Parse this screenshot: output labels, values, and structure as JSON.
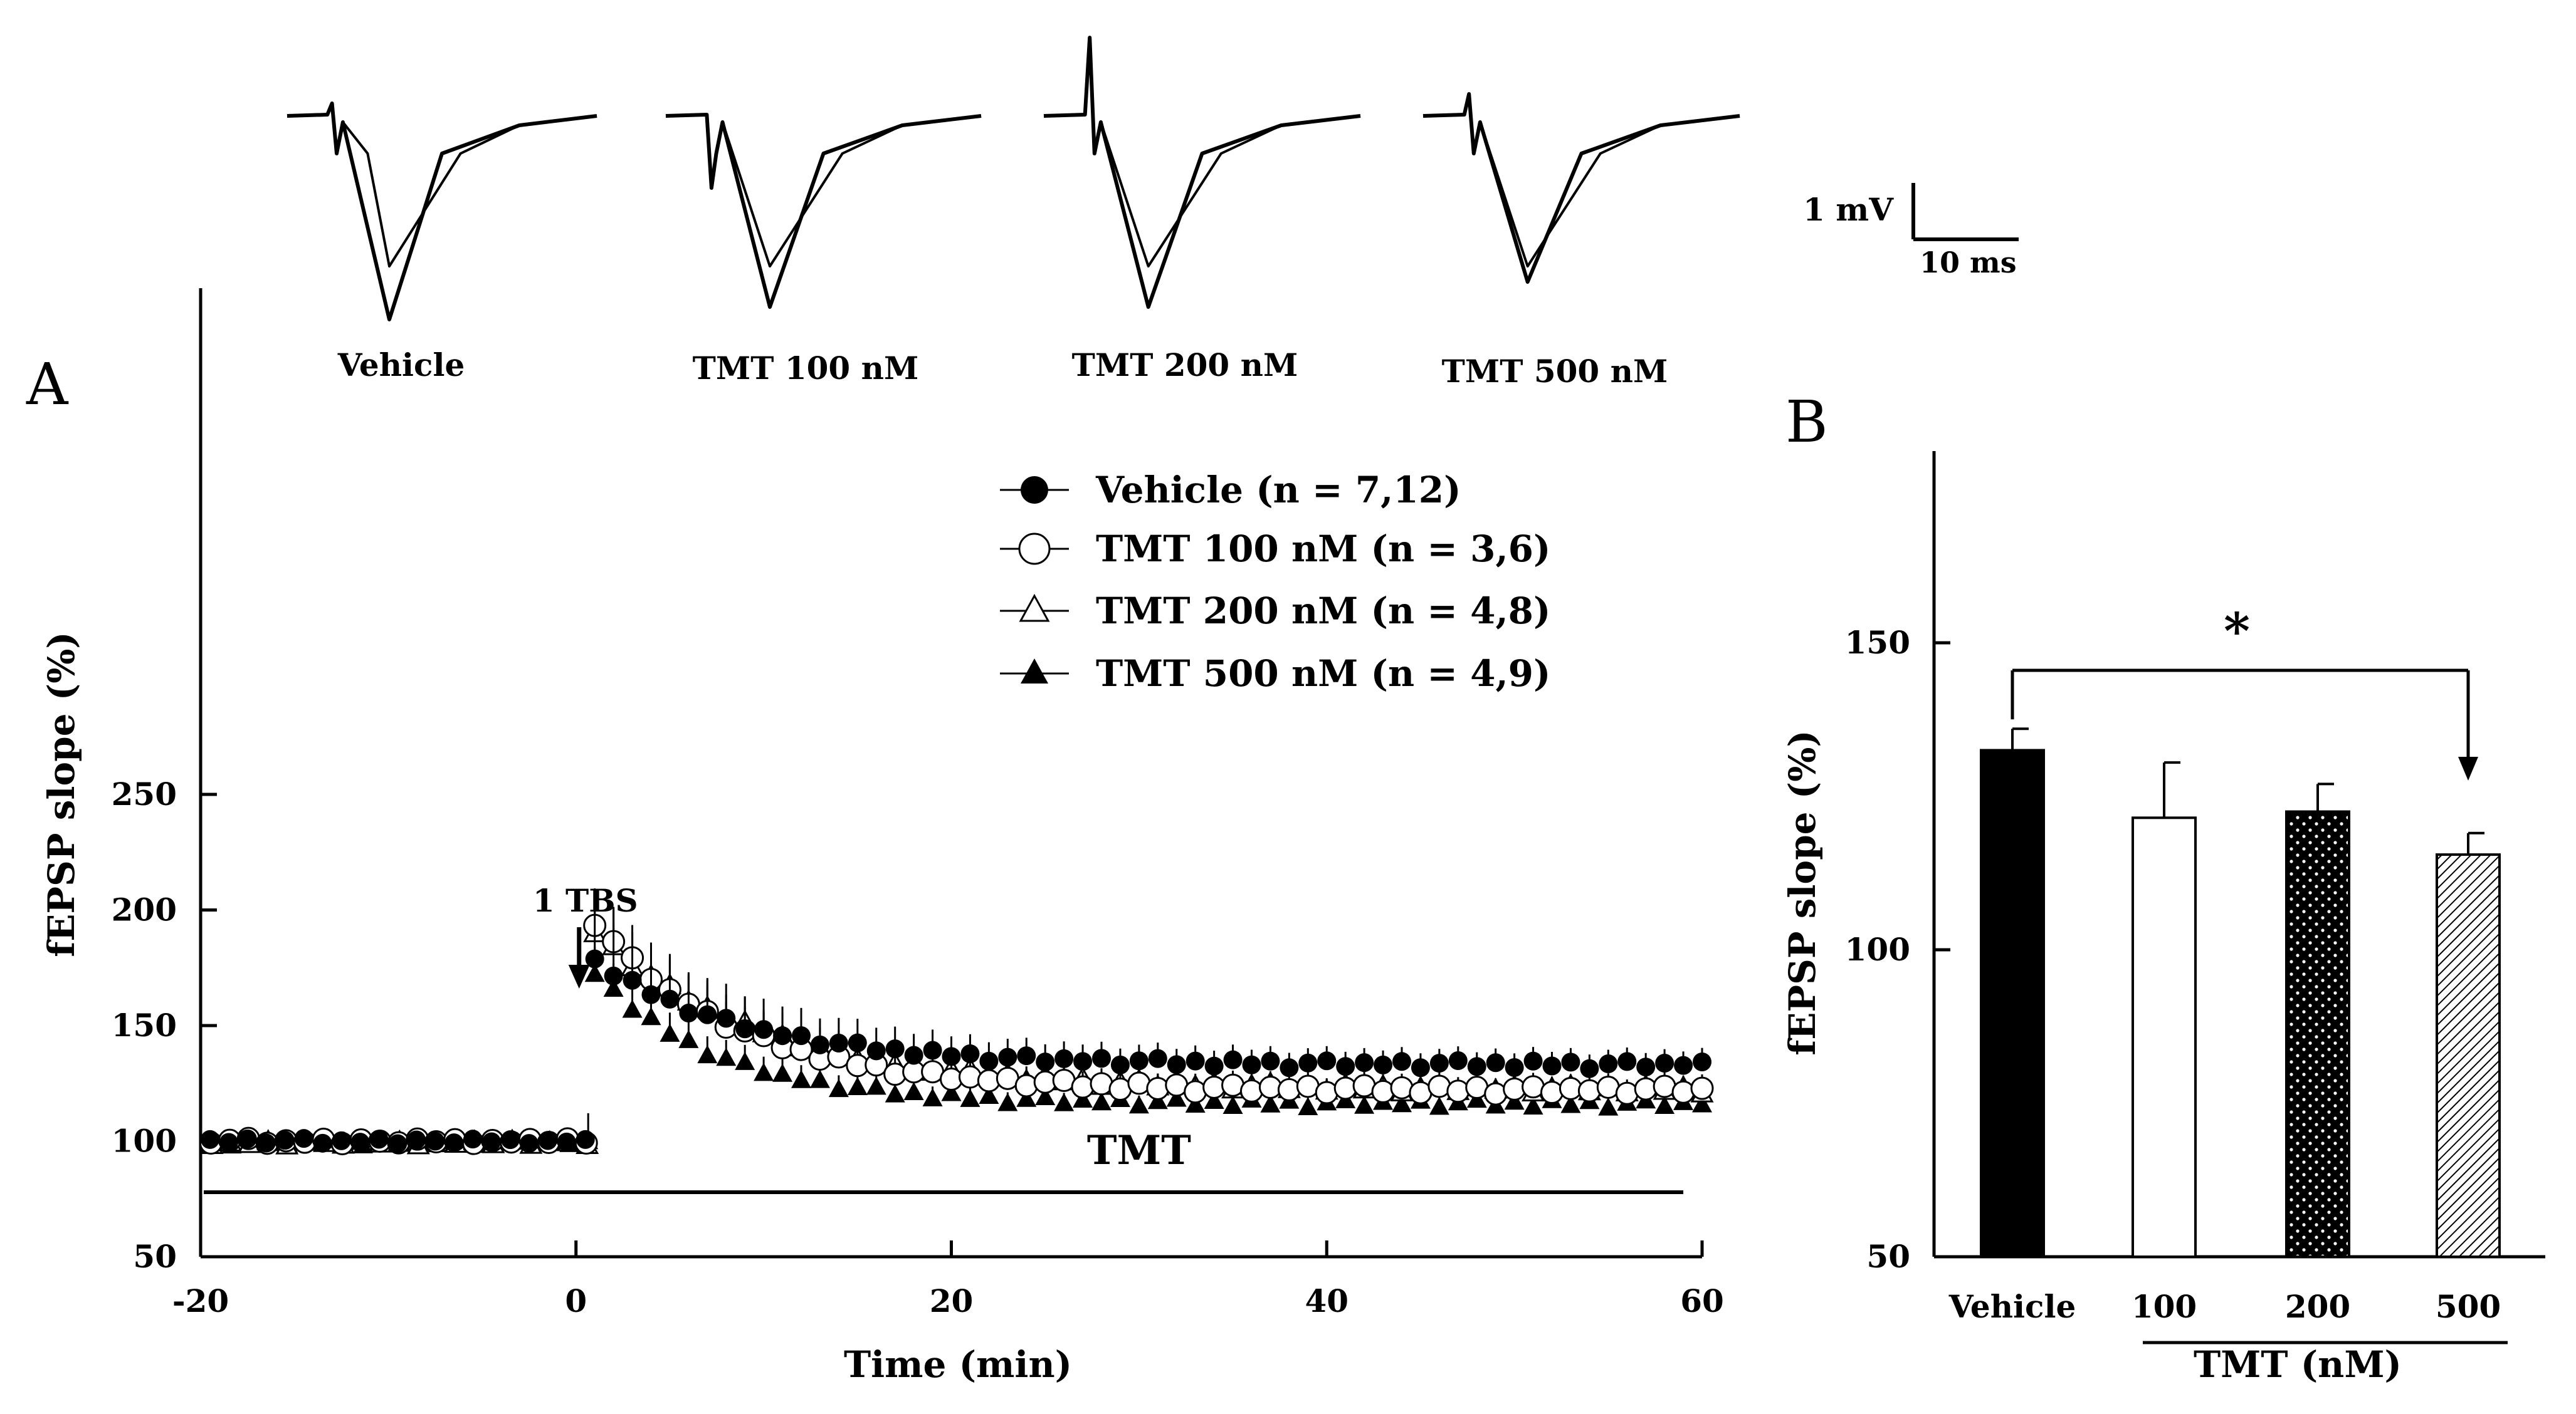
{
  "panel_labels": {
    "a": "A",
    "b": "B"
  },
  "traces": {
    "labels": [
      "Vehicle",
      "TMT 100 nM",
      "TMT 200 nM",
      "TMT 500 nM"
    ],
    "scale_bar": {
      "voltage": "1 mV",
      "time": "10 ms"
    }
  },
  "chart_data": [
    {
      "type": "line",
      "xlabel": "Time (min)",
      "ylabel": "fEPSP slope (%)",
      "xlim": [
        -20,
        60
      ],
      "ylim": [
        50,
        250
      ],
      "xticks": [
        "-20",
        "0",
        "20",
        "40",
        "60"
      ],
      "yticks": [
        "50",
        "100",
        "150",
        "200",
        "250"
      ],
      "annotations": {
        "tbs_label": "1 TBS",
        "tbs_time": 0,
        "drug_bar_label": "TMT",
        "drug_bar_range": [
          -20,
          59
        ]
      },
      "legend_position": "top-center",
      "series": [
        {
          "name": "Vehicle (n = 7,12)",
          "marker": "filled-circle",
          "baseline": 100,
          "final": 133,
          "peak": 178,
          "tau": 8
        },
        {
          "name": "TMT 100 nM (n = 3,6)",
          "marker": "open-circle",
          "baseline": 100,
          "final": 122,
          "peak": 195,
          "tau": 7.5
        },
        {
          "name": "TMT 200 nM (n = 4,8)",
          "marker": "open-triangle",
          "baseline": 99,
          "final": 122,
          "peak": 190,
          "tau": 9
        },
        {
          "name": "TMT 500 nM (n = 4,9)",
          "marker": "filled-triangle",
          "baseline": 99,
          "final": 116,
          "peak": 173,
          "tau": 6.5
        }
      ]
    },
    {
      "type": "bar",
      "xlabel": "TMT (nM)",
      "ylabel": "fEPSP slope (%)",
      "categories": [
        "Vehicle",
        "100",
        "200",
        "500"
      ],
      "values": [
        132.5,
        121.5,
        122.5,
        115.5
      ],
      "errors": [
        3.5,
        9,
        4.5,
        3.5
      ],
      "fills": [
        "solid-black",
        "white",
        "black-dotted",
        "hatched"
      ],
      "ylim": [
        50,
        180
      ],
      "yticks": [
        "50",
        "100",
        "150"
      ],
      "significance": {
        "from": "Vehicle",
        "to": "500",
        "label": "*"
      }
    }
  ]
}
